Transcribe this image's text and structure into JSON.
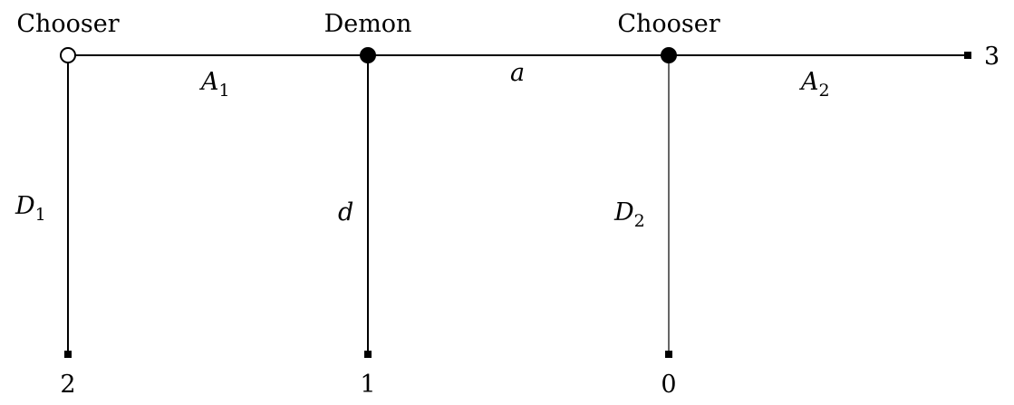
{
  "nodes": {
    "chooser_left": {
      "label": "Chooser",
      "fill": "#ffffff"
    },
    "demon": {
      "label": "Demon",
      "fill": "#000000"
    },
    "chooser_right": {
      "label": "Chooser",
      "fill": "#000000"
    }
  },
  "edges": {
    "A1": {
      "base": "A",
      "sub": "1"
    },
    "a": {
      "base": "a",
      "sub": ""
    },
    "A2": {
      "base": "A",
      "sub": "2"
    },
    "D1": {
      "base": "D",
      "sub": "1"
    },
    "d": {
      "base": "d",
      "sub": ""
    },
    "D2": {
      "base": "D",
      "sub": "2"
    }
  },
  "payoffs": {
    "D1": "2",
    "d": "1",
    "D2": "0",
    "A2": "3"
  },
  "colors": {
    "line": "#000000",
    "background": "#ffffff"
  }
}
